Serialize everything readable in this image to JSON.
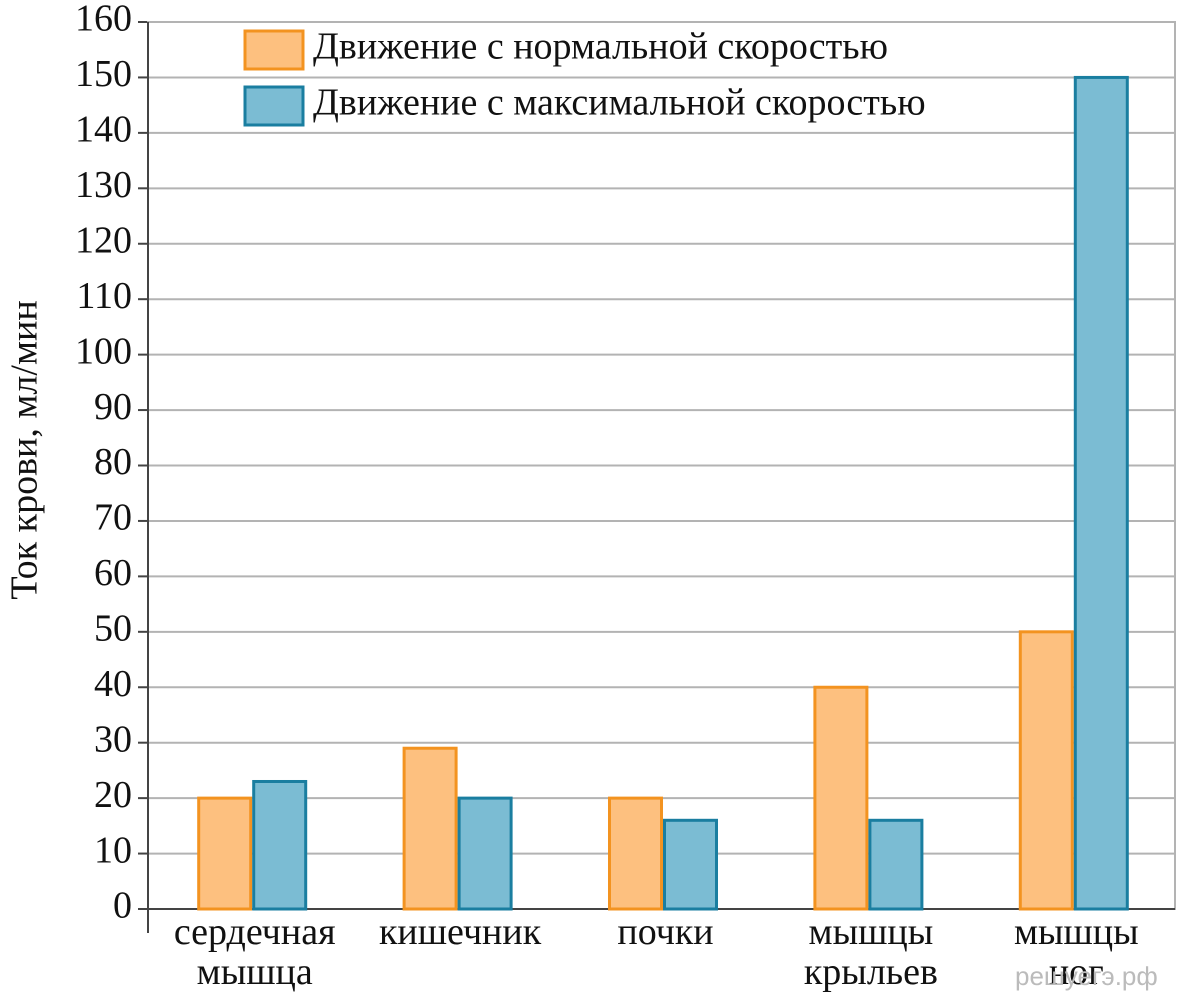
{
  "chart_data": {
    "type": "bar",
    "y_axis_label": "Ток крови, мл/мин",
    "categories": [
      "сердечная мышца",
      "кишечник",
      "почки",
      "мышцы крыльев",
      "мышцы ног"
    ],
    "series": [
      {
        "name": "Движение с нормальной скоростью",
        "color": "#fdc07f",
        "edge_color": "#f39320",
        "values": [
          20,
          29,
          20,
          40,
          50
        ]
      },
      {
        "name": "Движение с максимальной скоростью",
        "color": "#7bbcd3",
        "edge_color": "#1a7ea0",
        "values": [
          23,
          20,
          16,
          16,
          150
        ]
      }
    ],
    "ylim": [
      0,
      160
    ],
    "yticks": [
      0,
      10,
      20,
      30,
      40,
      50,
      60,
      70,
      80,
      90,
      100,
      110,
      120,
      130,
      140,
      150,
      160
    ],
    "grid": true,
    "watermark": "решуегэ.рф"
  }
}
